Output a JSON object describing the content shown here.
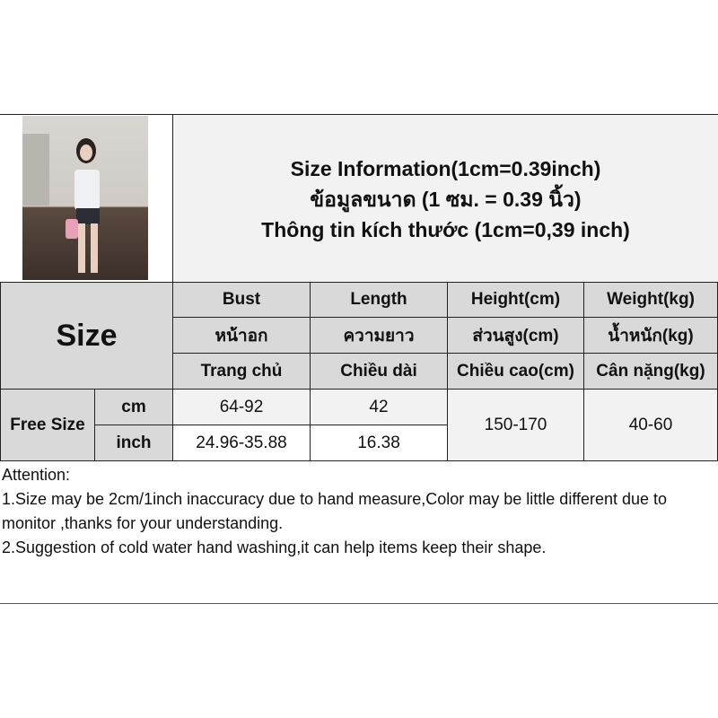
{
  "title": {
    "line1": "Size Information(1cm=0.39inch)",
    "line2": "ข้อมูลขนาด (1 ซม. = 0.39 นิ้ว)",
    "line3": "Thông tin kích thước (1cm=0,39 inch)"
  },
  "table": {
    "size_label": "Size",
    "headers": [
      {
        "en": "Bust",
        "th": "หน้าอก",
        "vi": "Trang chủ"
      },
      {
        "en": "Length",
        "th": "ความยาว",
        "vi": "Chiều dài"
      },
      {
        "en": "Height(cm)",
        "th": "ส่วนสูง(cm)",
        "vi": "Chiều cao(cm)"
      },
      {
        "en": "Weight(kg)",
        "th": "น้ำหนัก(kg)",
        "vi": "Cân nặng(kg)"
      }
    ],
    "row_label": "Free Size",
    "units": [
      "cm",
      "inch"
    ],
    "bust": [
      "64-92",
      "24.96-35.88"
    ],
    "length": [
      "42",
      "16.38"
    ],
    "height": "150-170",
    "weight": "40-60"
  },
  "notes": {
    "heading": "Attention:",
    "line1": "1.Size may be 2cm/1inch inaccuracy due to hand measure,Color may be little different due to monitor ,thanks for your understanding.",
    "line2": "2.Suggestion of cold water hand washing,it can help items keep their shape."
  }
}
